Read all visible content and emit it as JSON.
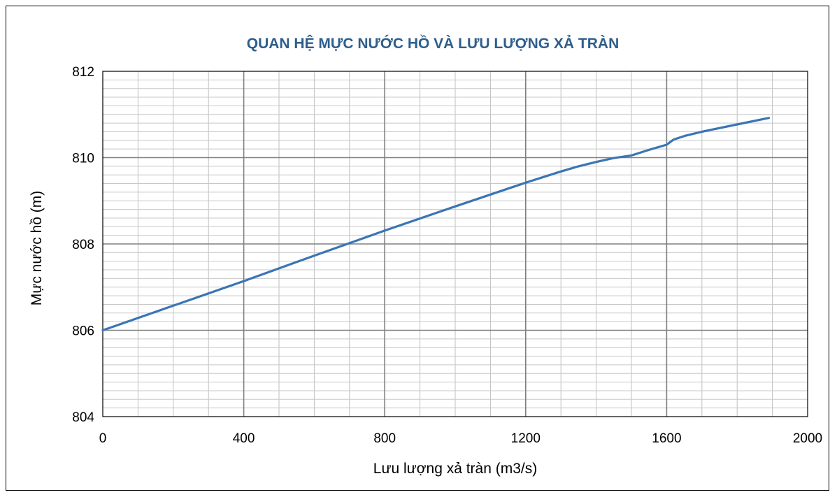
{
  "chart_data": {
    "type": "line",
    "title": "QUAN HỆ MỰC NƯỚC HỒ VÀ LƯU LƯỢNG XẢ TRÀN",
    "xlabel": "Lưu lượng xả tràn (m3/s)",
    "ylabel": "Mực nước hồ (m)",
    "xlim": [
      0,
      2000
    ],
    "ylim": [
      804,
      812
    ],
    "x_ticks": [
      "0",
      "400",
      "800",
      "1200",
      "1600",
      "2000"
    ],
    "y_ticks": [
      "804",
      "806",
      "808",
      "810",
      "812"
    ],
    "x_tick_values": [
      0,
      400,
      800,
      1200,
      1600,
      2000
    ],
    "y_tick_values": [
      804,
      806,
      808,
      810,
      812
    ],
    "grid": true,
    "legend": "none",
    "series": [
      {
        "color": "#3a75b4",
        "x": [
          0,
          200,
          400,
          600,
          800,
          1000,
          1200,
          1300,
          1350,
          1400,
          1450,
          1500,
          1550,
          1600,
          1620,
          1650,
          1700,
          1800,
          1890
        ],
        "y": [
          806.0,
          806.57,
          807.14,
          807.73,
          808.31,
          808.87,
          809.42,
          809.68,
          809.8,
          809.9,
          809.99,
          810.05,
          810.18,
          810.3,
          810.42,
          810.5,
          810.6,
          810.77,
          810.92
        ]
      }
    ]
  }
}
